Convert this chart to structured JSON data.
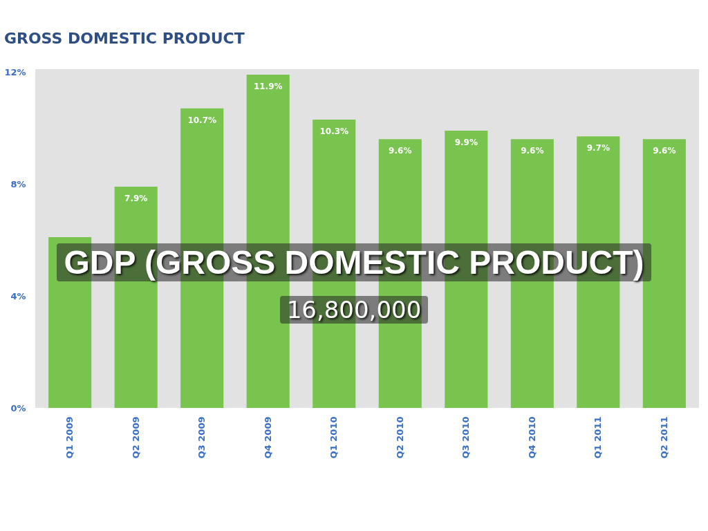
{
  "chart_data": {
    "type": "bar",
    "title": "GROSS DOMESTIC PRODUCT",
    "categories": [
      "Q1 2009",
      "Q2 2009",
      "Q3 2009",
      "Q4 2009",
      "Q1 2010",
      "Q2 2010",
      "Q3 2010",
      "Q4 2010",
      "Q1 2011",
      "Q2 2011"
    ],
    "values": [
      6.1,
      7.9,
      10.7,
      11.9,
      10.3,
      9.6,
      9.9,
      9.6,
      9.7,
      9.6
    ],
    "value_labels": [
      null,
      "7.9%",
      "10.7%",
      "11.9%",
      "10.3%",
      "9.6%",
      "9.9%",
      "9.6%",
      "9.7%",
      "9.6%"
    ],
    "color": "#78c44e",
    "ylim": [
      0,
      12.1
    ],
    "yticks": [
      {
        "value": 0,
        "label": "0%"
      },
      {
        "value": 4,
        "label": "4%"
      },
      {
        "value": 8,
        "label": "8%"
      },
      {
        "value": 12,
        "label": "12%"
      }
    ],
    "grid": false,
    "annotations": [
      "GDP (GROSS DOMESTIC PRODUCT)",
      "16,800,000"
    ]
  }
}
